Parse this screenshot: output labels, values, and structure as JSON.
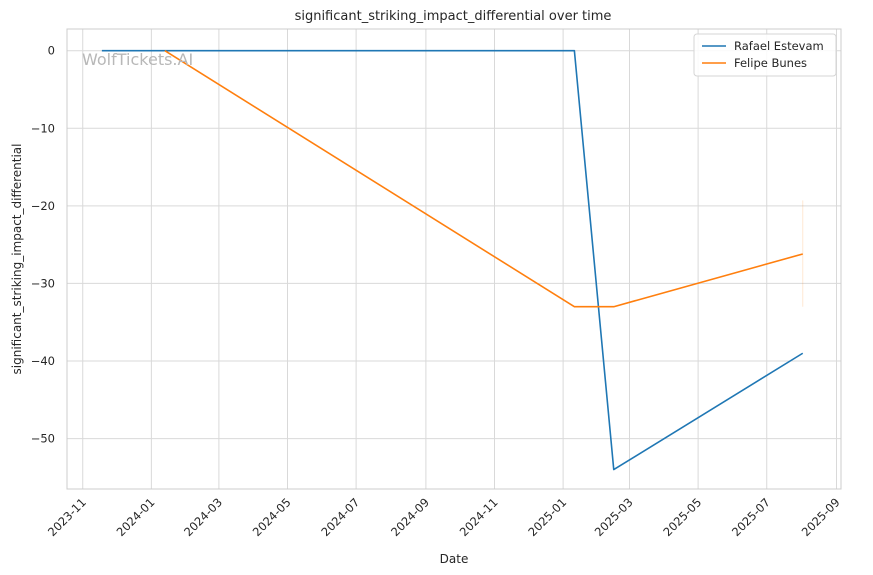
{
  "chart_data": {
    "type": "line",
    "title": "significant_striking_impact_differential over time",
    "xlabel": "Date",
    "ylabel": "significant_striking_impact_differential",
    "x_ticks": [
      "2023-11",
      "2024-01",
      "2024-03",
      "2024-05",
      "2024-07",
      "2024-09",
      "2024-11",
      "2025-01",
      "2025-03",
      "2025-05",
      "2025-07",
      "2025-09"
    ],
    "y_ticks": [
      0,
      -10,
      -20,
      -30,
      -40,
      -50
    ],
    "xlim": [
      "2023-10-18",
      "2025-09-05"
    ],
    "ylim": [
      -56.5,
      2.8
    ],
    "grid": true,
    "legend_position": "top-right",
    "watermark": "WolfTickets.AI",
    "series": [
      {
        "name": "Rafael Estevam",
        "color": "#1f77b4",
        "points": [
          {
            "x": "2023-11-18",
            "y": 0
          },
          {
            "x": "2025-01-11",
            "y": 0
          },
          {
            "x": "2025-02-15",
            "y": -54
          },
          {
            "x": "2025-08-02",
            "y": -39
          }
        ]
      },
      {
        "name": "Felipe Bunes",
        "color": "#ff7f0e",
        "points": [
          {
            "x": "2024-01-13",
            "y": 0
          },
          {
            "x": "2025-01-11",
            "y": -33
          },
          {
            "x": "2025-02-15",
            "y": -33
          },
          {
            "x": "2025-08-02",
            "y": -26.2
          }
        ]
      }
    ]
  }
}
